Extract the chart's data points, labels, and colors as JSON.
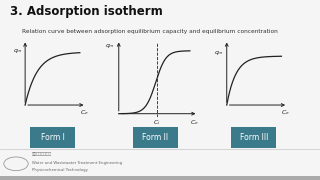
{
  "title": "3. Adsorption isotherm",
  "subtitle": "Relation curve between adsorption equilibrium capacity and equilibrium concentration",
  "background_color": "#e8e8e8",
  "panel_bg": "#f5f5f5",
  "forms": [
    "Form I",
    "Form II",
    "Form III"
  ],
  "form_label_bg": "#3a7a8a",
  "form_label_fg": "#ffffff",
  "curve_color": "#222222",
  "title_color": "#111111",
  "subtitle_color": "#333333",
  "footer_color": "#666666",
  "footer_line1": "清华大学环境学院",
  "footer_line2": "Water and Wastewater Treatment Engineering",
  "footer_line3": "Physicochemical Technology"
}
